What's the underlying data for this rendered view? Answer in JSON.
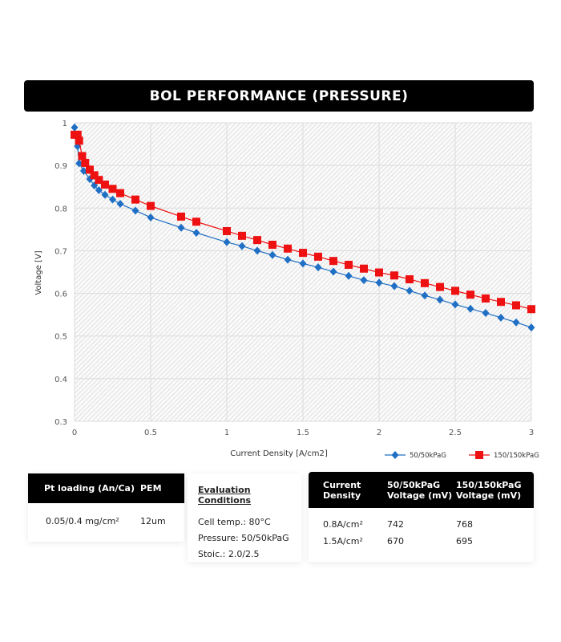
{
  "title": "BOL PERFORMANCE (PRESSURE)",
  "chart_data": {
    "type": "line",
    "title": "BOL PERFORMANCE (PRESSURE)",
    "xlabel": "Current Density [A/cm2]",
    "ylabel": "Voltage [V]",
    "xlim": [
      0,
      3
    ],
    "ylim": [
      0.3,
      1
    ],
    "xticks": [
      "0",
      "0.5",
      "1",
      "1.5",
      "2",
      "2.5",
      "3"
    ],
    "yticks": [
      "0.3",
      "0.4",
      "0.5",
      "0.6",
      "0.7",
      "0.8",
      "0.9",
      "1"
    ],
    "grid": true,
    "legend": "bottom-right",
    "series": [
      {
        "name": "50/50kPaG",
        "color": "#1f6fc4",
        "marker": "diamond",
        "x": [
          0,
          0.02,
          0.03,
          0.06,
          0.1,
          0.13,
          0.16,
          0.2,
          0.25,
          0.3,
          0.4,
          0.5,
          0.7,
          0.8,
          1.0,
          1.1,
          1.2,
          1.3,
          1.4,
          1.5,
          1.6,
          1.7,
          1.8,
          1.9,
          2.0,
          2.1,
          2.2,
          2.3,
          2.4,
          2.5,
          2.6,
          2.7,
          2.8,
          2.9,
          3.0
        ],
        "y": [
          0.989,
          0.945,
          0.905,
          0.887,
          0.868,
          0.853,
          0.842,
          0.831,
          0.82,
          0.81,
          0.794,
          0.778,
          0.754,
          0.742,
          0.72,
          0.711,
          0.7,
          0.69,
          0.679,
          0.67,
          0.661,
          0.651,
          0.641,
          0.631,
          0.625,
          0.617,
          0.606,
          0.595,
          0.585,
          0.574,
          0.564,
          0.554,
          0.543,
          0.532,
          0.52
        ]
      },
      {
        "name": "150/150kPaG",
        "color": "#ee1111",
        "marker": "square",
        "x": [
          0,
          0.02,
          0.03,
          0.05,
          0.07,
          0.1,
          0.13,
          0.16,
          0.2,
          0.25,
          0.3,
          0.4,
          0.5,
          0.7,
          0.8,
          1.0,
          1.1,
          1.2,
          1.3,
          1.4,
          1.5,
          1.6,
          1.7,
          1.8,
          1.9,
          2.0,
          2.1,
          2.2,
          2.3,
          2.4,
          2.5,
          2.6,
          2.7,
          2.8,
          2.9,
          3.0
        ],
        "y": [
          0.972,
          0.972,
          0.958,
          0.922,
          0.906,
          0.89,
          0.877,
          0.866,
          0.855,
          0.845,
          0.835,
          0.82,
          0.805,
          0.78,
          0.768,
          0.746,
          0.735,
          0.725,
          0.714,
          0.705,
          0.695,
          0.686,
          0.676,
          0.667,
          0.658,
          0.649,
          0.642,
          0.633,
          0.624,
          0.615,
          0.606,
          0.597,
          0.588,
          0.58,
          0.572,
          0.563
        ]
      }
    ]
  },
  "table1": {
    "headers": [
      "Pt loading (An/Ca)",
      "PEM"
    ],
    "row": [
      "0.05/0.4 mg/cm²",
      "12um"
    ]
  },
  "conditions": {
    "heading": "Evaluation Conditions",
    "items": [
      "Cell temp.: 80°C",
      "Pressure: 50/50kPaG",
      "Stoic.: 2.0/2.5"
    ]
  },
  "table2": {
    "headers": [
      "Current Density",
      "50/50kPaG Voltage (mV)",
      "150/150kPaG Voltage (mV)"
    ],
    "rows": [
      [
        "0.8A/cm²",
        "742",
        "768"
      ],
      [
        "1.5A/cm²",
        "670",
        "695"
      ]
    ]
  }
}
